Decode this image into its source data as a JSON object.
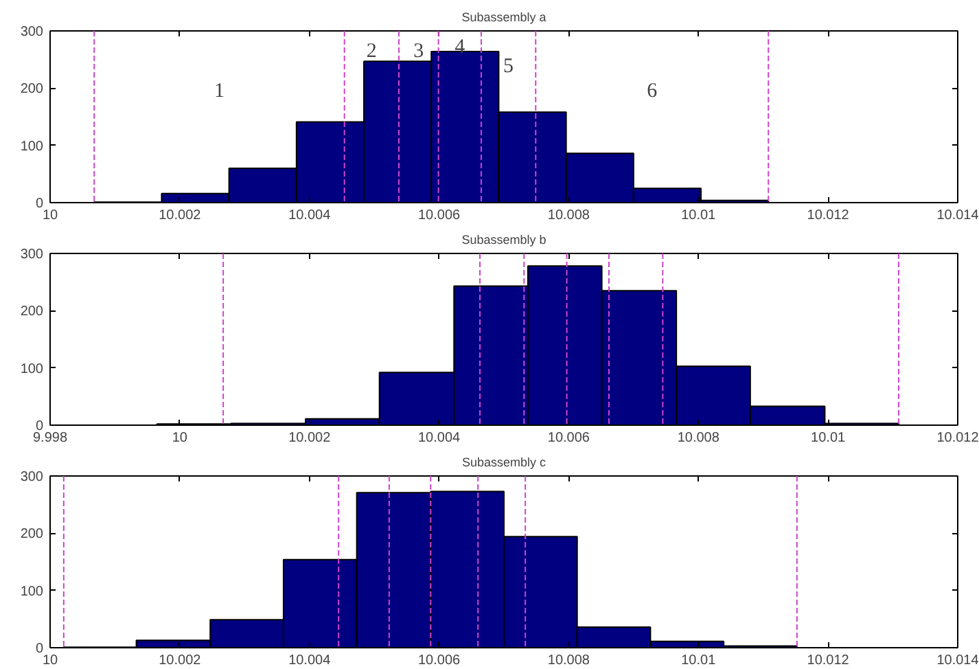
{
  "chart_data": [
    {
      "type": "histogram",
      "title": "Subassembly a",
      "color": "#000080",
      "bins": [
        10.00068,
        10.00172,
        10.00276,
        10.0038,
        10.00484,
        10.00588,
        10.00692,
        10.00796,
        10.009,
        10.01004,
        10.01108
      ],
      "values": [
        1,
        16,
        60,
        141,
        247,
        264,
        158,
        86,
        25,
        4
      ],
      "xlim": [
        10,
        10.014
      ],
      "xticks": [
        10,
        10.002,
        10.004,
        10.006,
        10.008,
        10.01,
        10.012,
        10.014
      ],
      "ylim": [
        0,
        300
      ],
      "yticks": [
        0,
        100,
        200,
        300
      ],
      "grid": false,
      "ref_lines": [
        {
          "axis": "x",
          "value": 10.00068,
          "color": "#cc44cc",
          "line_style": "dashed"
        },
        {
          "axis": "x",
          "value": 10.00454,
          "color": "#cc44cc",
          "line_style": "dashed"
        },
        {
          "axis": "x",
          "value": 10.00538,
          "color": "#cc44cc",
          "line_style": "dashed"
        },
        {
          "axis": "x",
          "value": 10.00599,
          "color": "#cc44cc",
          "line_style": "dashed"
        },
        {
          "axis": "x",
          "value": 10.00665,
          "color": "#cc44cc",
          "line_style": "dashed"
        },
        {
          "axis": "x",
          "value": 10.00749,
          "color": "#cc44cc",
          "line_style": "dashed"
        },
        {
          "axis": "x",
          "value": 10.01108,
          "color": "#cc44cc",
          "line_style": "dashed"
        }
      ],
      "annotations": [
        "1",
        "2",
        "3",
        "4",
        "5",
        "6"
      ]
    },
    {
      "type": "histogram",
      "title": "Subassembly b",
      "color": "#000080",
      "bins": [
        9.99965,
        10.00079,
        10.00194,
        10.00308,
        10.00423,
        10.00537,
        10.00651,
        10.00766,
        10.0088,
        10.00995,
        10.01109
      ],
      "values": [
        2,
        3,
        11,
        92,
        243,
        278,
        235,
        103,
        33,
        3
      ],
      "xlim": [
        9.998,
        10.012
      ],
      "xticks": [
        9.998,
        10,
        10.002,
        10.004,
        10.006,
        10.008,
        10.01,
        10.012
      ],
      "ylim": [
        0,
        300
      ],
      "yticks": [
        0,
        100,
        200,
        300
      ],
      "grid": false,
      "ref_lines": [
        {
          "axis": "x",
          "value": 10.00067,
          "color": "#cc44cc",
          "line_style": "dashed"
        },
        {
          "axis": "x",
          "value": 10.00463,
          "color": "#cc44cc",
          "line_style": "dashed"
        },
        {
          "axis": "x",
          "value": 10.00531,
          "color": "#cc44cc",
          "line_style": "dashed"
        },
        {
          "axis": "x",
          "value": 10.00597,
          "color": "#cc44cc",
          "line_style": "dashed"
        },
        {
          "axis": "x",
          "value": 10.00662,
          "color": "#cc44cc",
          "line_style": "dashed"
        },
        {
          "axis": "x",
          "value": 10.00745,
          "color": "#cc44cc",
          "line_style": "dashed"
        },
        {
          "axis": "x",
          "value": 10.01109,
          "color": "#cc44cc",
          "line_style": "dashed"
        }
      ]
    },
    {
      "type": "histogram",
      "title": "Subassembly c",
      "color": "#000080",
      "bins": [
        10.00021,
        10.00133,
        10.00247,
        10.0036,
        10.00473,
        10.00587,
        10.007,
        10.00813,
        10.00926,
        10.01039,
        10.01152
      ],
      "values": [
        1,
        13,
        49,
        154,
        271,
        273,
        194,
        36,
        11,
        3
      ],
      "xlim": [
        10,
        10.014
      ],
      "xticks": [
        10,
        10.002,
        10.004,
        10.006,
        10.008,
        10.01,
        10.012,
        10.014
      ],
      "ylim": [
        0,
        300
      ],
      "yticks": [
        0,
        100,
        200,
        300
      ],
      "grid": false,
      "ref_lines": [
        {
          "axis": "x",
          "value": 10.00021,
          "color": "#cc44cc",
          "line_style": "dashed"
        },
        {
          "axis": "x",
          "value": 10.00445,
          "color": "#cc44cc",
          "line_style": "dashed"
        },
        {
          "axis": "x",
          "value": 10.00523,
          "color": "#cc44cc",
          "line_style": "dashed"
        },
        {
          "axis": "x",
          "value": 10.00587,
          "color": "#cc44cc",
          "line_style": "dashed"
        },
        {
          "axis": "x",
          "value": 10.0066,
          "color": "#cc44cc",
          "line_style": "dashed"
        },
        {
          "axis": "x",
          "value": 10.00733,
          "color": "#cc44cc",
          "line_style": "dashed"
        },
        {
          "axis": "x",
          "value": 10.01152,
          "color": "#cc44cc",
          "line_style": "dashed"
        }
      ]
    }
  ]
}
